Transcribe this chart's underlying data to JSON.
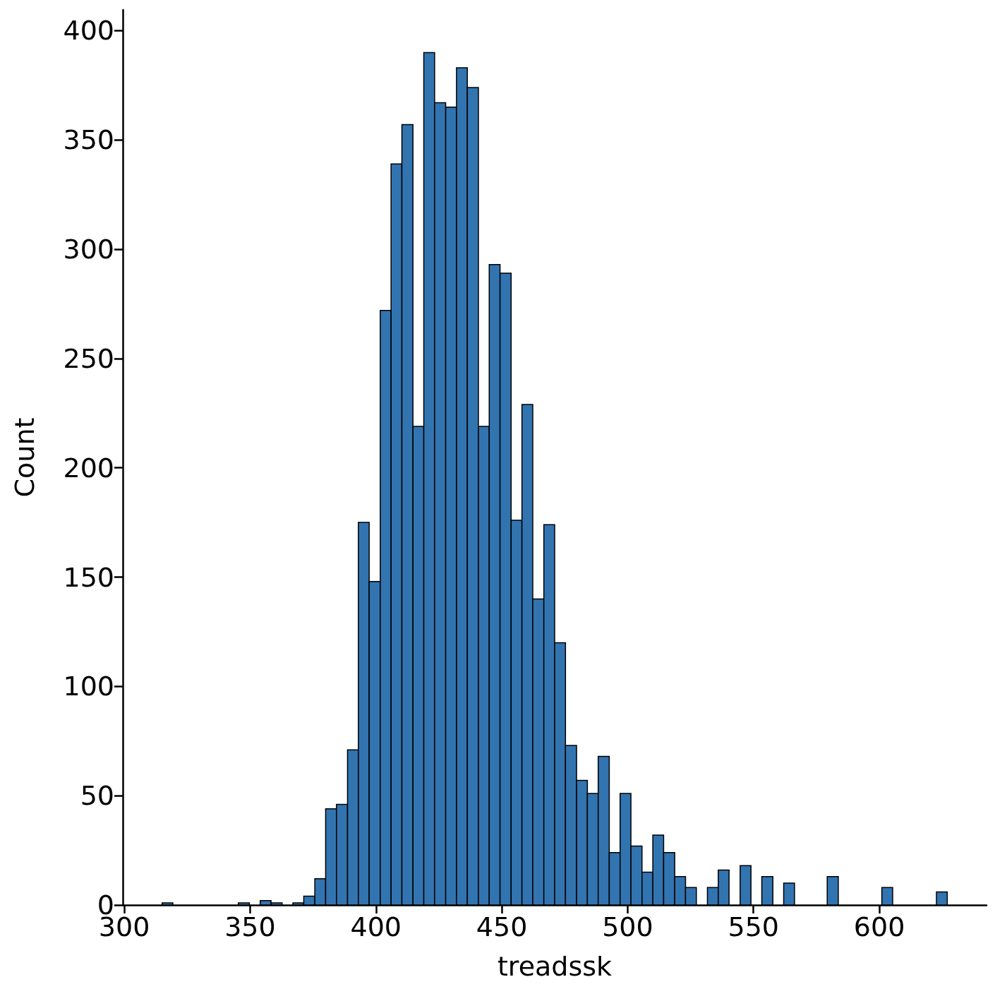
{
  "chart_data": {
    "type": "histogram",
    "xlabel": "treadssk",
    "ylabel": "Count",
    "color": "#3274b0",
    "bins": [
      315,
      319.3,
      323.7,
      328,
      332.3,
      336.7,
      341,
      345.3,
      349.7,
      354,
      358.3,
      362.7,
      367,
      371.3,
      375.7,
      380,
      384.3,
      388.7,
      393,
      397.3,
      401.7,
      406,
      410.3,
      414.7,
      419,
      423.3,
      427.7,
      432,
      436.3,
      440.7,
      445,
      449.3,
      453.7,
      458,
      462.3,
      466.7,
      471,
      475.3,
      479.7,
      484,
      488.3,
      492.7,
      497,
      501.3,
      505.7,
      510,
      514.3,
      518.7,
      523,
      527.3,
      531.7,
      536,
      540.3,
      544.7,
      549,
      553.3,
      557.7,
      562,
      566.3,
      570.7,
      575,
      579.3,
      583.7,
      588,
      592.3,
      596.7,
      601,
      605.3,
      609.7,
      614,
      618.3,
      622.7,
      627
    ],
    "values": [
      1,
      0,
      0,
      0,
      0,
      0,
      0,
      1,
      0,
      2,
      1,
      0,
      1,
      4,
      12,
      44,
      46,
      71,
      175,
      148,
      272,
      339,
      357,
      219,
      390,
      367,
      365,
      383,
      374,
      219,
      293,
      289,
      176,
      229,
      140,
      174,
      120,
      73,
      57,
      51,
      68,
      24,
      51,
      27,
      15,
      32,
      24,
      13,
      8,
      0,
      8,
      16,
      0,
      18,
      0,
      13,
      0,
      10,
      0,
      0,
      0,
      13,
      0,
      0,
      0,
      0,
      8,
      0,
      0,
      0,
      0,
      6
    ],
    "xlim": [
      299.4,
      642.6
    ],
    "xticks": [
      300,
      350,
      400,
      450,
      500,
      550,
      600
    ],
    "ylim": [
      0,
      409.5
    ],
    "yticks": [
      0,
      50,
      100,
      150,
      200,
      250,
      300,
      350,
      400
    ],
    "grid": false
  }
}
